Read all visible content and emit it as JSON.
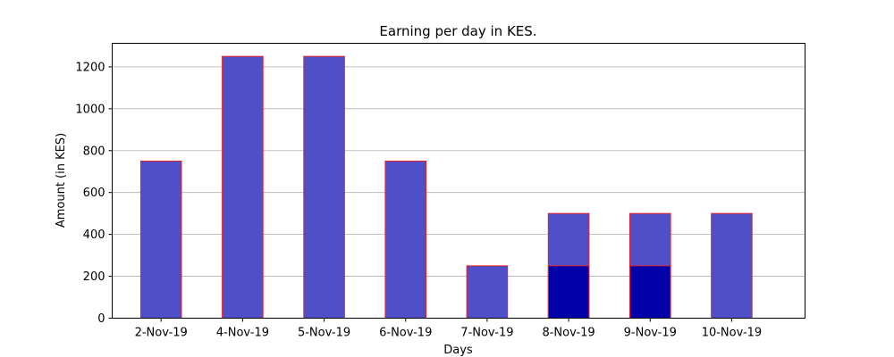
{
  "chart_data": {
    "type": "bar",
    "title": "Earning per day in KES.",
    "xlabel": "Days",
    "ylabel": "Amount (in KES)",
    "categories": [
      "2-Nov-19",
      "4-Nov-19",
      "5-Nov-19",
      "6-Nov-19",
      "7-Nov-19",
      "8-Nov-19",
      "9-Nov-19",
      "10-Nov-19"
    ],
    "series": [
      {
        "values": [
          750,
          1250,
          1250,
          750,
          250,
          500,
          500,
          500
        ],
        "color": "#4f4fc8"
      },
      {
        "values": [
          0,
          0,
          0,
          0,
          0,
          250,
          250,
          0
        ],
        "color": "#0000a8"
      }
    ],
    "bar_edge_color": "#e8202a",
    "ylim": [
      0,
      1312.5
    ],
    "yticks": [
      0,
      200,
      400,
      600,
      800,
      1000,
      1200
    ],
    "grid": "y-axis only"
  }
}
